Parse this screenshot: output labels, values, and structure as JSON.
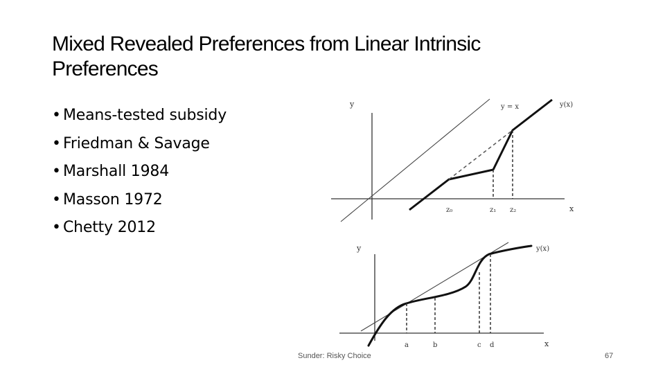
{
  "slide": {
    "title": "Mixed Revealed Preferences from Linear Intrinsic Preferences",
    "bullets": [
      "Means-tested subsidy",
      "Friedman & Savage",
      "Marshall 1984",
      "Masson 1972",
      "Chetty 2012"
    ],
    "footer_left": "Sunder: Risky Choice",
    "page_number": "67"
  },
  "diagram_top": {
    "y_axis_label": "y",
    "x_axis_label": "x",
    "line_label": "y = x",
    "curve_label": "y(x)",
    "x_ticks": [
      "z₀",
      "z₁",
      "z₂"
    ]
  },
  "diagram_bottom": {
    "y_axis_label": "y",
    "x_axis_label": "x",
    "curve_label": "y(x)",
    "x_ticks": [
      "a",
      "b",
      "c",
      "d"
    ]
  }
}
